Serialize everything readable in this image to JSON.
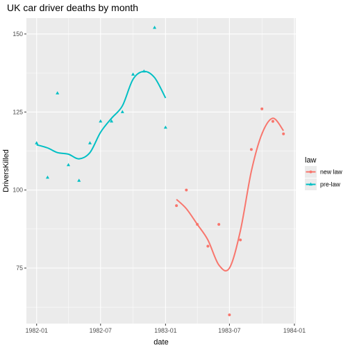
{
  "colors": {
    "panel_bg": "#ebebeb",
    "grid_major": "#ffffff",
    "new_law": "#F8766D",
    "pre_law": "#00BFC4"
  },
  "chart_data": {
    "type": "scatter",
    "title": "UK car driver deaths by month",
    "xlabel": "date",
    "ylabel": "DriversKilled",
    "xlim": [
      "1981-12-03",
      "1984-01-05"
    ],
    "ylim": [
      57.2,
      155.1
    ],
    "x_ticks": [
      "1982-01",
      "1982-07",
      "1983-01",
      "1983-07",
      "1984-01"
    ],
    "y_ticks": [
      75,
      100,
      125,
      150
    ],
    "grid": true,
    "legend": {
      "title": "law",
      "position": "right"
    },
    "series": [
      {
        "name": "new law",
        "color": "#F8766D",
        "marker": "circle",
        "points": [
          [
            "1983-02-01",
            95
          ],
          [
            "1983-03-01",
            100
          ],
          [
            "1983-04-01",
            89
          ],
          [
            "1983-05-01",
            82
          ],
          [
            "1983-06-01",
            89
          ],
          [
            "1983-07-01",
            60
          ],
          [
            "1983-08-01",
            84
          ],
          [
            "1983-09-01",
            113
          ],
          [
            "1983-10-01",
            126
          ],
          [
            "1983-11-01",
            122
          ],
          [
            "1983-12-01",
            118
          ]
        ],
        "smooth": [
          [
            "1983-02-01",
            97
          ],
          [
            "1983-03-01",
            94
          ],
          [
            "1983-04-01",
            89
          ],
          [
            "1983-05-01",
            84
          ],
          [
            "1983-06-01",
            76
          ],
          [
            "1983-07-01",
            75
          ],
          [
            "1983-08-01",
            87
          ],
          [
            "1983-09-01",
            106
          ],
          [
            "1983-10-01",
            118
          ],
          [
            "1983-11-01",
            123
          ],
          [
            "1983-12-01",
            119
          ]
        ]
      },
      {
        "name": "pre-law",
        "color": "#00BFC4",
        "marker": "triangle",
        "points": [
          [
            "1982-01-01",
            115
          ],
          [
            "1982-02-01",
            104
          ],
          [
            "1982-03-01",
            131
          ],
          [
            "1982-04-01",
            108
          ],
          [
            "1982-05-01",
            103
          ],
          [
            "1982-06-01",
            115
          ],
          [
            "1982-07-01",
            122
          ],
          [
            "1982-08-01",
            122
          ],
          [
            "1982-09-01",
            125
          ],
          [
            "1982-10-01",
            137
          ],
          [
            "1982-11-01",
            138
          ],
          [
            "1982-12-01",
            152
          ],
          [
            "1983-01-01",
            120
          ]
        ],
        "smooth": [
          [
            "1982-01-01",
            114.5
          ],
          [
            "1982-02-01",
            113.5
          ],
          [
            "1982-03-01",
            112
          ],
          [
            "1982-04-01",
            111.5
          ],
          [
            "1982-05-01",
            110
          ],
          [
            "1982-06-01",
            112
          ],
          [
            "1982-07-01",
            118.5
          ],
          [
            "1982-08-01",
            123
          ],
          [
            "1982-09-01",
            127
          ],
          [
            "1982-10-01",
            135.5
          ],
          [
            "1982-11-01",
            138
          ],
          [
            "1982-12-01",
            136
          ],
          [
            "1983-01-01",
            129.5
          ]
        ]
      }
    ]
  }
}
